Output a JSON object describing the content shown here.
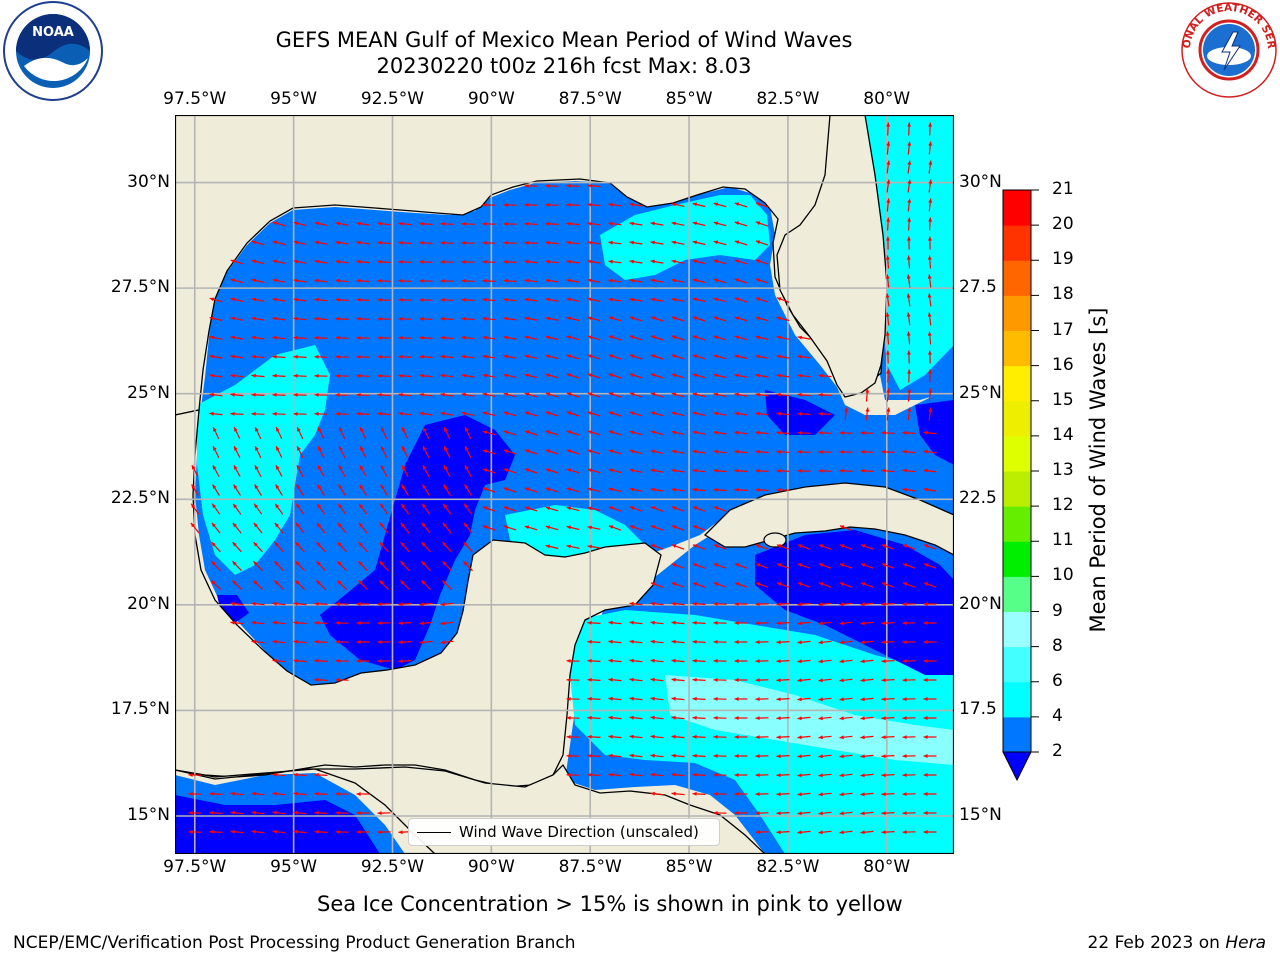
{
  "title": {
    "line1": "GEFS MEAN Gulf of Mexico Mean Period of Wind Waves",
    "line2": "20230220 t00z 216h fcst   Max: 8.03"
  },
  "logos": {
    "left": {
      "name": "NOAA",
      "ring_text": "NATIONAL OCEANIC AND ATMOSPHERIC ADMINISTRATION · U.S. DEPARTMENT OF COMMERCE"
    },
    "right": {
      "name": "NATIONAL WEATHER SERVICE"
    }
  },
  "map": {
    "lon_ticks": [
      "97.5°W",
      "95°W",
      "92.5°W",
      "90°W",
      "87.5°W",
      "85°W",
      "82.5°W",
      "80°W"
    ],
    "lat_ticks_left": [
      "30°N",
      "27.5°N",
      "25°N",
      "22.5°N",
      "20°N",
      "17.5°N",
      "15°N"
    ],
    "lat_ticks_right": [
      "30°N",
      "27.5",
      "25°N",
      "22.5",
      "20°N",
      "17.5",
      "15°N"
    ],
    "extent": {
      "lon_min": -98,
      "lon_max": -78.3,
      "lat_min": 14.1,
      "lat_max": 31.6
    },
    "colors": {
      "land": "#efedda",
      "coast": "#000000",
      "grid": "#b4b4b4",
      "arrow": "#ff0000"
    },
    "legend_label": "Wind Wave Direction (unscaled)"
  },
  "colorbar": {
    "label": "Mean Period of Wind Waves [s]",
    "ticks": [
      "2",
      "4",
      "6",
      "8",
      "9",
      "10",
      "11",
      "12",
      "13",
      "14",
      "15",
      "16",
      "17",
      "18",
      "19",
      "20",
      "21"
    ],
    "colors": [
      "#0000ff",
      "#0077ff",
      "#00ffff",
      "#44ffff",
      "#99ffff",
      "#55ff88",
      "#00ee00",
      "#66ee00",
      "#bbee00",
      "#ddff00",
      "#eeee00",
      "#ffee00",
      "#ffbb00",
      "#ff9900",
      "#ff6600",
      "#ff3300",
      "#ff0000"
    ]
  },
  "subtitle": "Sea Ice Concentration > 15% is shown in pink to yellow",
  "footer": {
    "left": "NCEP/EMC/Verification Post Processing Product Generation Branch",
    "right_date": "22 Feb 2023 on ",
    "right_host": "Hera"
  }
}
